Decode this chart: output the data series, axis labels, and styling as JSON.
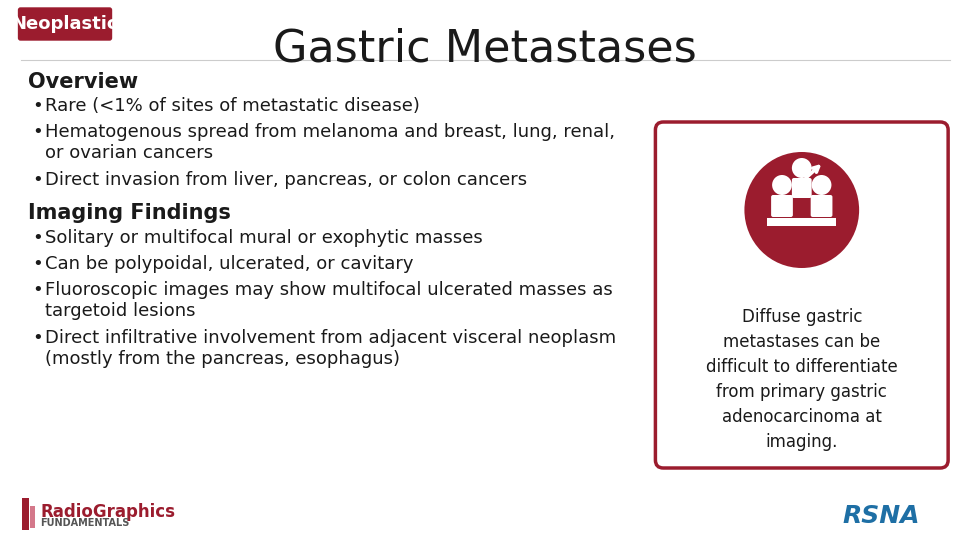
{
  "bg_color": "#ffffff",
  "title": "Gastric Metastases",
  "title_fontsize": 32,
  "title_color": "#1a1a1a",
  "tag_text": "Neoplastic",
  "tag_bg": "#9b1c2e",
  "tag_text_color": "#ffffff",
  "tag_fontsize": 13,
  "section1_header": "Overview",
  "section2_header": "Imaging Findings",
  "section_header_fontsize": 15,
  "bullet_fontsize": 13,
  "overview_bullets": [
    "Rare (<1% of sites of metastatic disease)",
    "Hematogenous spread from melanoma and breast, lung, renal,\nor ovarian cancers",
    "Direct invasion from liver, pancreas, or colon cancers"
  ],
  "imaging_bullets": [
    "Solitary or multifocal mural or exophytic masses",
    "Can be polypoidal, ulcerated, or cavitary",
    "Fluoroscopic images may show multifocal ulcerated masses as\ntargetoid lesions",
    "Direct infiltrative involvement from adjacent visceral neoplasm\n(mostly from the pancreas, esophagus)"
  ],
  "sidebar_text": "Diffuse gastric\nmetastases can be\ndifficult to differentiate\nfrom primary gastric\nadenocarcinoma at\nimaging.",
  "sidebar_text_fontsize": 12,
  "sidebar_border_color": "#9b1c2e",
  "sidebar_bg": "#ffffff",
  "icon_circle_color": "#9b1c2e",
  "radiographics_text": "RadioGraphics",
  "radiographics_sub": "FUNDAMENTALS",
  "rsna_text": "RSNA",
  "accent_color": "#9b1c2e",
  "text_color": "#1a1a1a"
}
